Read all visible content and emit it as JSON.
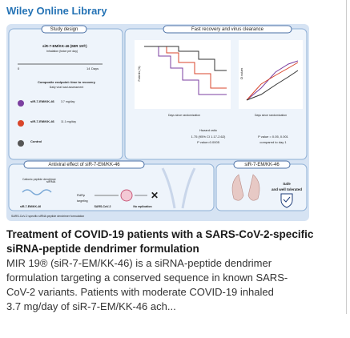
{
  "header": {
    "title": "Wiley Online Library"
  },
  "figure": {
    "study_design": {
      "heading": "Study design",
      "drug": "siR-7-EM/KK-46 (MIR 19®)",
      "route": "Inhalation (twice per day)",
      "days_label": "Days",
      "day_start": "0",
      "day_end": "14",
      "endpoint": "Composite endpoint: time to recovery",
      "assessment": "Daily viral load assessment",
      "arms": [
        {
          "name": "siR-7-EM/KK-46",
          "dose": "3.7 mg/day"
        },
        {
          "name": "siR-7-EM/KK-46",
          "dose": "11.1 mg/day"
        },
        {
          "name": "Control"
        }
      ]
    },
    "recovery": {
      "heading": "Fast recovery and virus clearance",
      "km_y_label": "Patients (%)",
      "ct_y_label": "Ct values",
      "km_x_label": "Days since randomization",
      "ct_x_label": "Days since randomization",
      "hazard": "Hazard ratio",
      "hazard_ci": "1.75 (95% CI 1.17-2.62)",
      "hazard_p": "P value=0.0005",
      "p_values": "P value = 0.05, 0.001",
      "comparison": "compared to day 1"
    },
    "antiviral": {
      "heading": "Antiviral effect of siR-7-EM/KK-46",
      "dendrimer": "Cationic peptide dendrimer",
      "sirna": "siRNA",
      "target": "RdRp",
      "targeting": "targeting",
      "labels": [
        "siR-7-EM/KK-46",
        "SARS-CoV-2",
        "No replication"
      ]
    },
    "safety": {
      "heading": "siR-7-EM/KK-46",
      "safe": "Safe",
      "tolerated": "and well tolerated"
    },
    "caption": "SARS-CoV-2 specific siRNA peptide dendrimer formulation"
  },
  "article": {
    "title": [
      "Treatment of COVID-19 patients with a SARS-CoV-2-specific",
      "siRNA-peptide dendrimer formulation"
    ],
    "abstract": [
      "MIR 19® (siR-7-EM/KK-46) is a siRNA-peptide dendrimer",
      "formulation targeting a conserved sequence in known SARS-",
      "CoV-2 variants. Patients with moderate COVID-19 inhaled",
      "3.7 mg/day of siR-7-EM/KK-46 ach..."
    ]
  }
}
